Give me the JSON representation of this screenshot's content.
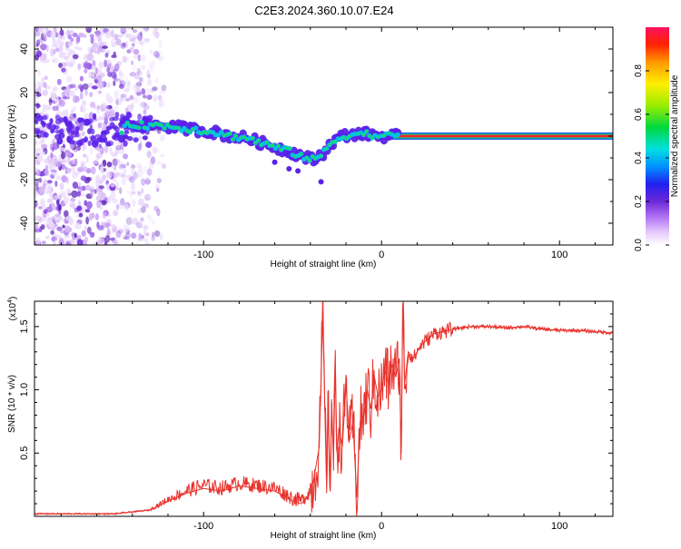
{
  "title": "C2E3.2024.360.10.07.E24",
  "chart_data": [
    {
      "type": "heatmap",
      "xlabel": "Height of straight line (km)",
      "ylabel": "Frequency (Hz)",
      "xlim": [
        -195,
        130
      ],
      "ylim": [
        -50,
        50
      ],
      "x_ticks": [
        -100,
        0,
        100
      ],
      "y_ticks": [
        -40,
        -20,
        0,
        20,
        40
      ],
      "grid": false,
      "colorbar": {
        "label": "Normalized spectral amplitude",
        "range": [
          0,
          1
        ],
        "ticks": [
          "0.0",
          "0.2",
          "0.4",
          "0.6",
          "0.8"
        ],
        "colors": [
          "#ffffff",
          "#d8b4f8",
          "#a855f7",
          "#7c3aed",
          "#4f46e5",
          "#0000ff",
          "#00a0ff",
          "#00e5d0",
          "#00dd40",
          "#aaee00",
          "#ffee00",
          "#ff9900",
          "#ff2200",
          "#ff1060"
        ]
      },
      "noise_region": {
        "x": [
          -195,
          -130
        ],
        "y": [
          -50,
          50
        ]
      },
      "ridge": [
        {
          "x": -145,
          "y": 6
        },
        {
          "x": -135,
          "y": 5
        },
        {
          "x": -125,
          "y": 5
        },
        {
          "x": -115,
          "y": 4
        },
        {
          "x": -105,
          "y": 3
        },
        {
          "x": -95,
          "y": 2
        },
        {
          "x": -85,
          "y": 0
        },
        {
          "x": -75,
          "y": -1
        },
        {
          "x": -68,
          "y": -3
        },
        {
          "x": -60,
          "y": -5
        },
        {
          "x": -52,
          "y": -7
        },
        {
          "x": -45,
          "y": -9
        },
        {
          "x": -38,
          "y": -11
        },
        {
          "x": -33,
          "y": -8
        },
        {
          "x": -28,
          "y": -3
        },
        {
          "x": -22,
          "y": 0
        },
        {
          "x": -15,
          "y": 1
        },
        {
          "x": -8,
          "y": 1
        },
        {
          "x": 0,
          "y": 0
        },
        {
          "x": 10,
          "y": 0
        },
        {
          "x": 30,
          "y": 0
        },
        {
          "x": 60,
          "y": 0
        },
        {
          "x": 100,
          "y": 0
        },
        {
          "x": 130,
          "y": 0
        }
      ],
      "ridge_colors": {
        "scattered_outer": "#5b21e8",
        "scattered_mid": "#00c8e0",
        "scattered_core": "#22dd44",
        "band_outer": "#1a5cff",
        "band_mid": "#00dd66",
        "band_core": "#ff2030"
      }
    },
    {
      "type": "line",
      "xlabel": "Height of straight line (km)",
      "ylabel": "SNR (10 * v/v)",
      "y_exponent_label": "(x10",
      "y_exponent_power": "4",
      "y_exponent_close": ")",
      "xlim": [
        -195,
        130
      ],
      "ylim": [
        0,
        1.7
      ],
      "x_ticks": [
        -100,
        0,
        100
      ],
      "y_ticks": [
        "0.5",
        "1.0",
        "1.5"
      ],
      "grid": false,
      "line_color": "#e8322c",
      "series": [
        {
          "x": [
            -195,
            -150,
            -130,
            -120,
            -110,
            -100,
            -90,
            -80,
            -70,
            -60,
            -50,
            -45,
            -40,
            -38,
            -35,
            -33,
            -31,
            -30,
            -29,
            -28,
            -27,
            -26,
            -25,
            -24,
            -22,
            -20,
            -18,
            -16,
            -14,
            -12,
            -10,
            -8,
            -6,
            -4,
            -2,
            0,
            2,
            4,
            6,
            8,
            10,
            11,
            12,
            13,
            15,
            18,
            22,
            26,
            30,
            35,
            40,
            50,
            60,
            70,
            80,
            90,
            100,
            110,
            120,
            130
          ],
          "y": [
            0.02,
            0.02,
            0.05,
            0.12,
            0.18,
            0.22,
            0.2,
            0.24,
            0.22,
            0.2,
            0.12,
            0.1,
            0.18,
            0.3,
            0.55,
            1.6,
            0.3,
            0.85,
            0.25,
            0.9,
            0.45,
            1.2,
            0.5,
            0.7,
            0.55,
            1.05,
            0.6,
            0.75,
            0.15,
            0.75,
            0.8,
            1.0,
            0.85,
            1.1,
            0.95,
            1.0,
            1.15,
            1.05,
            1.2,
            1.1,
            1.25,
            0.5,
            1.68,
            1.05,
            1.3,
            1.25,
            1.35,
            1.4,
            1.45,
            1.46,
            1.48,
            1.5,
            1.5,
            1.49,
            1.5,
            1.48,
            1.47,
            1.47,
            1.46,
            1.45
          ]
        }
      ]
    }
  ]
}
